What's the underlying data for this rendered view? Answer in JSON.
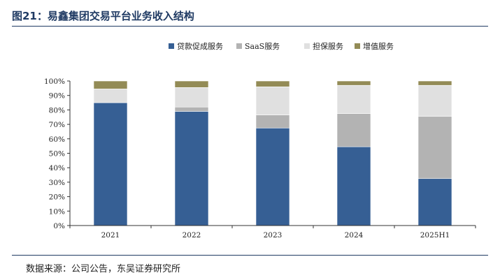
{
  "figure": {
    "title": "图21：易鑫集团交易平台业务收入结构",
    "source": "数据来源：公司公告，东吴证券研究所"
  },
  "chart_data": {
    "type": "bar",
    "stacked": true,
    "categories": [
      "2021",
      "2022",
      "2023",
      "2024",
      "2025H1"
    ],
    "series": [
      {
        "name": "贷款促成服务",
        "color": "#365f94",
        "values": [
          85,
          79,
          67.5,
          54.5,
          32.5
        ]
      },
      {
        "name": "SaaS服务",
        "color": "#b3b3b3",
        "values": [
          0,
          3,
          9,
          23,
          43
        ]
      },
      {
        "name": "担保服务",
        "color": "#e0e0e0",
        "values": [
          9.5,
          13.5,
          19.5,
          19.5,
          21.5
        ]
      },
      {
        "name": "增值服务",
        "color": "#938b56",
        "values": [
          5.5,
          4.5,
          4,
          3,
          3
        ]
      }
    ],
    "ylim": [
      0,
      100
    ],
    "yticks": [
      "0%",
      "10%",
      "20%",
      "30%",
      "40%",
      "50%",
      "60%",
      "70%",
      "80%",
      "90%",
      "100%"
    ],
    "legend": "top",
    "grid": false,
    "xlabel": "",
    "ylabel": ""
  }
}
